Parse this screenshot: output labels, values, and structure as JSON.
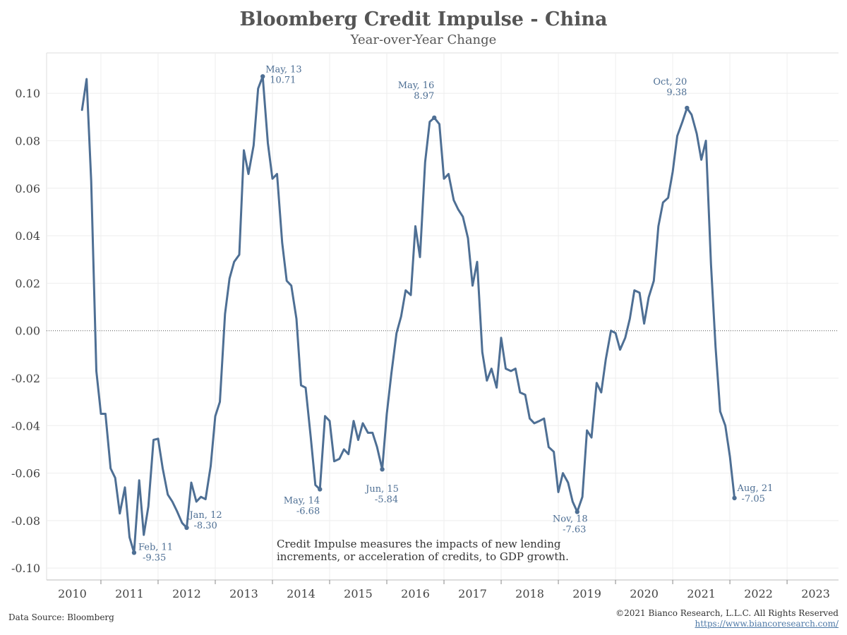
{
  "header": {
    "title": "Bloomberg Credit Impulse - China",
    "subtitle": "Year-over-Year Change"
  },
  "footer": {
    "source": "Data Source: Bloomberg",
    "copyright": "©2021 Bianco Research, L.L.C. All Rights Reserved",
    "url": "https://www.biancoresearch.com/"
  },
  "colors": {
    "line": "#4e6f94",
    "annotation": "#4e6f94",
    "axis_text": "#444444",
    "grid": "#eeeeee"
  },
  "chart_data": {
    "type": "line",
    "title": "Bloomberg Credit Impulse - China",
    "subtitle": "Year-over-Year Change",
    "xlabel": "",
    "ylabel": "",
    "xlim": [
      2009.55,
      2023.4
    ],
    "ylim": [
      -0.105,
      0.117
    ],
    "grid": true,
    "zero_line": "dotted",
    "x_ticks": [
      "2010",
      "2011",
      "2012",
      "2013",
      "2014",
      "2015",
      "2016",
      "2017",
      "2018",
      "2019",
      "2020",
      "2021",
      "2022",
      "2023"
    ],
    "y_ticks": [
      "0.10",
      "0.08",
      "0.06",
      "0.04",
      "0.02",
      "0.00",
      "-0.02",
      "-0.04",
      "-0.06",
      "-0.08",
      "-0.10"
    ],
    "series": [
      {
        "x": [
          2010.17,
          2010.25,
          2010.33,
          2010.42,
          2010.5,
          2010.58,
          2010.67,
          2010.75,
          2010.83,
          2010.92,
          2011.0,
          2011.08,
          2011.17,
          2011.25,
          2011.33,
          2011.42,
          2011.5,
          2011.58,
          2011.67,
          2011.75,
          2011.83,
          2011.92,
          2012.0,
          2012.08,
          2012.17,
          2012.25,
          2012.33,
          2012.42,
          2012.5,
          2012.58,
          2012.67,
          2012.75,
          2012.83,
          2012.92,
          2013.0,
          2013.08,
          2013.17,
          2013.25,
          2013.33,
          2013.42,
          2013.5,
          2013.58,
          2013.67,
          2013.75,
          2013.83,
          2013.92,
          2014.0,
          2014.08,
          2014.17,
          2014.25,
          2014.33,
          2014.42,
          2014.5,
          2014.58,
          2014.67,
          2014.75,
          2014.83,
          2014.92,
          2015.0,
          2015.08,
          2015.17,
          2015.25,
          2015.33,
          2015.42,
          2015.5,
          2015.58,
          2015.67,
          2015.75,
          2015.83,
          2015.92,
          2016.0,
          2016.08,
          2016.17,
          2016.25,
          2016.33,
          2016.42,
          2016.5,
          2016.58,
          2016.67,
          2016.75,
          2016.83,
          2016.92,
          2017.0,
          2017.08,
          2017.17,
          2017.25,
          2017.33,
          2017.42,
          2017.5,
          2017.58,
          2017.67,
          2017.75,
          2017.83,
          2017.92,
          2018.0,
          2018.08,
          2018.17,
          2018.25,
          2018.33,
          2018.42,
          2018.5,
          2018.58,
          2018.67,
          2018.75,
          2018.83,
          2018.92,
          2019.0,
          2019.08,
          2019.17,
          2019.25,
          2019.33,
          2019.42,
          2019.5,
          2019.58,
          2019.67,
          2019.75,
          2019.83,
          2019.92,
          2020.0,
          2020.08,
          2020.17,
          2020.25,
          2020.33,
          2020.42,
          2020.5,
          2020.58,
          2020.67,
          2020.75,
          2020.83,
          2020.92,
          2021.0,
          2021.08,
          2021.17,
          2021.25,
          2021.33,
          2021.42,
          2021.5,
          2021.58
        ],
        "y": [
          0.093,
          0.106,
          0.063,
          -0.017,
          -0.035,
          -0.035,
          -0.058,
          -0.062,
          -0.077,
          -0.066,
          -0.087,
          -0.0935,
          -0.063,
          -0.086,
          -0.074,
          -0.046,
          -0.0455,
          -0.058,
          -0.069,
          -0.072,
          -0.076,
          -0.081,
          -0.083,
          -0.064,
          -0.072,
          -0.07,
          -0.071,
          -0.057,
          -0.036,
          -0.03,
          0.007,
          0.022,
          0.029,
          0.032,
          0.076,
          0.066,
          0.078,
          0.102,
          0.1071,
          0.079,
          0.064,
          0.066,
          0.037,
          0.021,
          0.019,
          0.005,
          -0.023,
          -0.024,
          -0.045,
          -0.065,
          -0.0668,
          -0.036,
          -0.038,
          -0.055,
          -0.054,
          -0.05,
          -0.052,
          -0.038,
          -0.046,
          -0.039,
          -0.043,
          -0.043,
          -0.049,
          -0.0584,
          -0.035,
          -0.018,
          -0.001,
          0.006,
          0.017,
          0.015,
          0.044,
          0.031,
          0.071,
          0.088,
          0.0897,
          0.087,
          0.064,
          0.066,
          0.055,
          0.051,
          0.048,
          0.039,
          0.019,
          0.029,
          -0.009,
          -0.021,
          -0.016,
          -0.024,
          -0.003,
          -0.016,
          -0.017,
          -0.016,
          -0.026,
          -0.027,
          -0.037,
          -0.039,
          -0.038,
          -0.037,
          -0.049,
          -0.051,
          -0.068,
          -0.06,
          -0.064,
          -0.072,
          -0.0763,
          -0.07,
          -0.042,
          -0.045,
          -0.022,
          -0.026,
          -0.012,
          0.0,
          -0.001,
          -0.008,
          -0.003,
          0.005,
          0.017,
          0.016,
          0.003,
          0.014,
          0.021,
          0.044,
          0.054,
          0.056,
          0.067,
          0.082,
          0.088,
          0.0938,
          0.091,
          0.083,
          0.072,
          0.08,
          0.028,
          -0.007,
          -0.034,
          -0.04,
          -0.053,
          -0.0705
        ]
      }
    ],
    "annotations": [
      {
        "x": 2011.08,
        "y": -0.0935,
        "label": "Feb, 11",
        "value": "-9.35"
      },
      {
        "x": 2012.0,
        "y": -0.083,
        "label": "Jan, 12",
        "value": "-8.30"
      },
      {
        "x": 2013.33,
        "y": 0.1071,
        "label": "May, 13",
        "value": "10.71"
      },
      {
        "x": 2014.33,
        "y": -0.0668,
        "label": "May, 14",
        "value": "-6.68"
      },
      {
        "x": 2015.42,
        "y": -0.0584,
        "label": "Jun, 15",
        "value": "-5.84"
      },
      {
        "x": 2016.33,
        "y": 0.0897,
        "label": "May, 16",
        "value": "8.97"
      },
      {
        "x": 2018.83,
        "y": -0.0763,
        "label": "Nov, 18",
        "value": "-7.63"
      },
      {
        "x": 2020.75,
        "y": 0.0938,
        "label": "Oct, 20",
        "value": "9.38"
      },
      {
        "x": 2021.58,
        "y": -0.0705,
        "label": "Aug, 21",
        "value": "-7.05"
      }
    ],
    "note_lines": [
      "Credit Impulse measures the impacts of new lending",
      "increments, or acceleration of credits, to GDP growth."
    ]
  }
}
